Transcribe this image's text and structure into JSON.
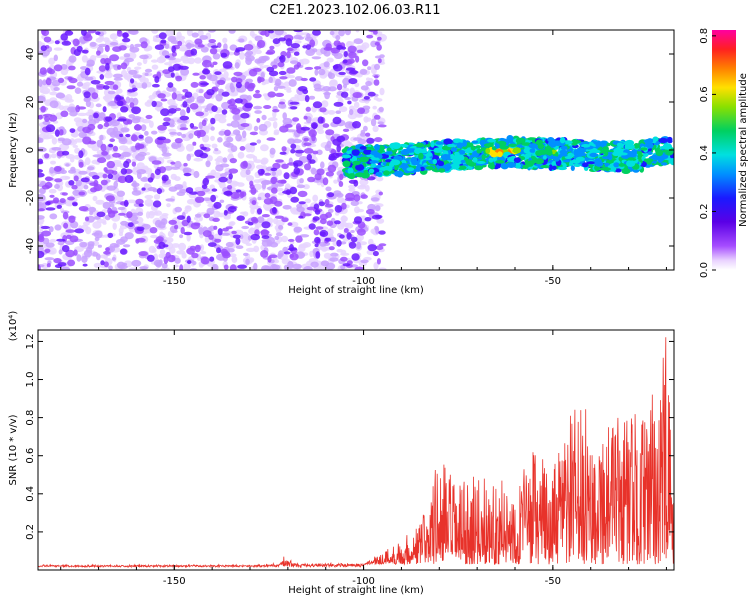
{
  "figure": {
    "title": "C2E1.2023.102.06.03.R11"
  },
  "chart_data": [
    {
      "type": "heatmap",
      "title": "",
      "xlabel": "Height of straight line (km)",
      "ylabel": "Frequency (Hz)",
      "xlim": [
        -186,
        -18
      ],
      "ylim": [
        -50,
        50
      ],
      "xticks": [
        -150,
        -100,
        -50
      ],
      "yticks": [
        -40,
        -20,
        0,
        20,
        40
      ],
      "grid": false,
      "description_of_data": "Noise speckle at low amplitude for heights below about -95 km; a coherent band centred near 0 Hz from about -100 km to -18 km, rising slightly toward the right, with peak amplitudes (~0.6-0.8) near -65 km and -60 km.",
      "band_center": {
        "x": [
          -105,
          -90,
          -75,
          -60,
          -45,
          -30,
          -18
        ],
        "y": [
          -5,
          -4,
          -2,
          -1,
          -2,
          -3,
          0
        ]
      },
      "peaks": [
        {
          "x": -65,
          "y": -1,
          "amplitude": 0.8
        },
        {
          "x": -61,
          "y": 0,
          "amplitude": 0.7
        },
        {
          "x": -50,
          "y": -1,
          "amplitude": 0.55
        },
        {
          "x": -30,
          "y": -4,
          "amplitude": 0.5
        }
      ],
      "colorbar": {
        "label": "Normalized spectral amplitude",
        "range": [
          0,
          0.82
        ],
        "ticks": [
          0.0,
          0.2,
          0.4,
          0.6,
          0.8
        ],
        "tick_labels": [
          "0.0",
          "0.2",
          "0.4",
          "0.6",
          "0.8"
        ],
        "colormap": "rainbow (white → violet → blue → cyan → green → yellow → orange → red → magenta)"
      }
    },
    {
      "type": "line",
      "title": "",
      "xlabel": "Height of straight line (km)",
      "ylabel": "SNR (10 * v/v)",
      "y_multiplier_label": "(x10⁴)",
      "xlim": [
        -186,
        -18
      ],
      "ylim": [
        0,
        1.26
      ],
      "xticks": [
        -150,
        -100,
        -50
      ],
      "yticks": [
        0.2,
        0.4,
        0.6,
        0.8,
        1.0,
        1.2
      ],
      "ytick_labels": [
        "0.2",
        "0.4",
        "0.6",
        "0.8",
        "1.0",
        "1.2"
      ],
      "grid": false,
      "series": [
        {
          "color": "#e8322a",
          "envelope_x": [
            -186,
            -130,
            -122,
            -121,
            -118,
            -100,
            -95,
            -90,
            -85,
            -80,
            -75,
            -70,
            -65,
            -60,
            -55,
            -50,
            -45,
            -40,
            -35,
            -30,
            -25,
            -22,
            -20,
            -18
          ],
          "envelope_y": [
            0.02,
            0.02,
            0.03,
            0.07,
            0.03,
            0.03,
            0.1,
            0.16,
            0.26,
            0.62,
            0.45,
            0.5,
            0.48,
            0.45,
            0.65,
            0.52,
            0.87,
            0.84,
            0.8,
            0.85,
            0.82,
            1.08,
            1.25,
            0.4
          ]
        }
      ]
    }
  ]
}
